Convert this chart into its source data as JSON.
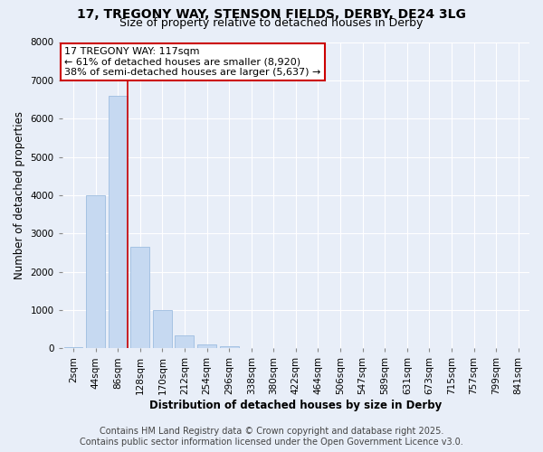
{
  "title_line1": "17, TREGONY WAY, STENSON FIELDS, DERBY, DE24 3LG",
  "title_line2": "Size of property relative to detached houses in Derby",
  "xlabel": "Distribution of detached houses by size in Derby",
  "ylabel": "Number of detached properties",
  "bar_labels": [
    "2sqm",
    "44sqm",
    "86sqm",
    "128sqm",
    "170sqm",
    "212sqm",
    "254sqm",
    "296sqm",
    "338sqm",
    "380sqm",
    "422sqm",
    "464sqm",
    "506sqm",
    "547sqm",
    "589sqm",
    "631sqm",
    "673sqm",
    "715sqm",
    "757sqm",
    "799sqm",
    "841sqm"
  ],
  "bar_values": [
    40,
    4000,
    6600,
    2650,
    990,
    330,
    110,
    60,
    0,
    0,
    0,
    0,
    0,
    0,
    0,
    0,
    0,
    0,
    0,
    0,
    0
  ],
  "bar_color": "#c6d9f1",
  "bar_edgecolor": "#9dbde0",
  "ylim": [
    0,
    8000
  ],
  "yticks": [
    0,
    1000,
    2000,
    3000,
    4000,
    5000,
    6000,
    7000,
    8000
  ],
  "annotation_title": "17 TREGONY WAY: 117sqm",
  "annotation_line2": "← 61% of detached houses are smaller (8,920)",
  "annotation_line3": "38% of semi-detached houses are larger (5,637) →",
  "annotation_box_color": "#ffffff",
  "annotation_box_edgecolor": "#cc0000",
  "vline_color": "#cc0000",
  "vline_x_bin": 2,
  "footer_line1": "Contains HM Land Registry data © Crown copyright and database right 2025.",
  "footer_line2": "Contains public sector information licensed under the Open Government Licence v3.0.",
  "background_color": "#e8eef8",
  "plot_background": "#e8eef8",
  "grid_color": "#ffffff",
  "title_fontsize": 10,
  "subtitle_fontsize": 9,
  "axis_label_fontsize": 8.5,
  "tick_fontsize": 7.5,
  "annotation_fontsize": 8,
  "footer_fontsize": 7
}
